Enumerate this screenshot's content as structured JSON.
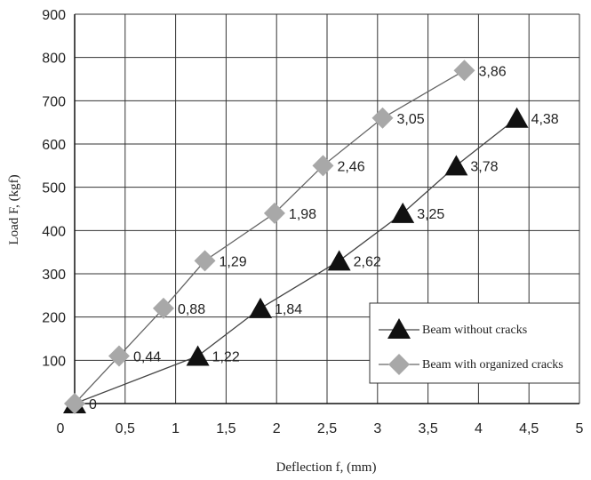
{
  "chart_data": {
    "type": "line",
    "xlabel": "Deflection f, (mm)",
    "ylabel": "Load F, (kgf)",
    "xlim": [
      0,
      5
    ],
    "ylim": [
      0,
      900
    ],
    "x_ticks": [
      "0",
      "0,5",
      "1",
      "1,5",
      "2",
      "2,5",
      "3",
      "3,5",
      "4",
      "4,5",
      "5"
    ],
    "y_ticks": [
      "0",
      "100",
      "200",
      "300",
      "400",
      "500",
      "600",
      "700",
      "800",
      "900"
    ],
    "grid": true,
    "legend_position": "bottom-right",
    "series": [
      {
        "name": "Beam without cracks",
        "marker": "triangle",
        "color": "#111111",
        "x": [
          0,
          1.22,
          1.84,
          2.62,
          3.25,
          3.78,
          4.38
        ],
        "y": [
          0,
          110,
          220,
          330,
          440,
          550,
          660
        ],
        "labels": [
          "0",
          "1,22",
          "1,84",
          "2,62",
          "3,25",
          "3,78",
          "4,38"
        ]
      },
      {
        "name": "Beam with organized cracks",
        "marker": "diamond",
        "color": "#a8a8a8",
        "x": [
          0,
          0.44,
          0.88,
          1.29,
          1.98,
          2.46,
          3.05,
          3.86
        ],
        "y": [
          0,
          110,
          220,
          330,
          440,
          550,
          660,
          770
        ],
        "labels": [
          "",
          "0,44",
          "0,88",
          "1,29",
          "1,98",
          "2,46",
          "3,05",
          "3,86"
        ]
      }
    ]
  }
}
